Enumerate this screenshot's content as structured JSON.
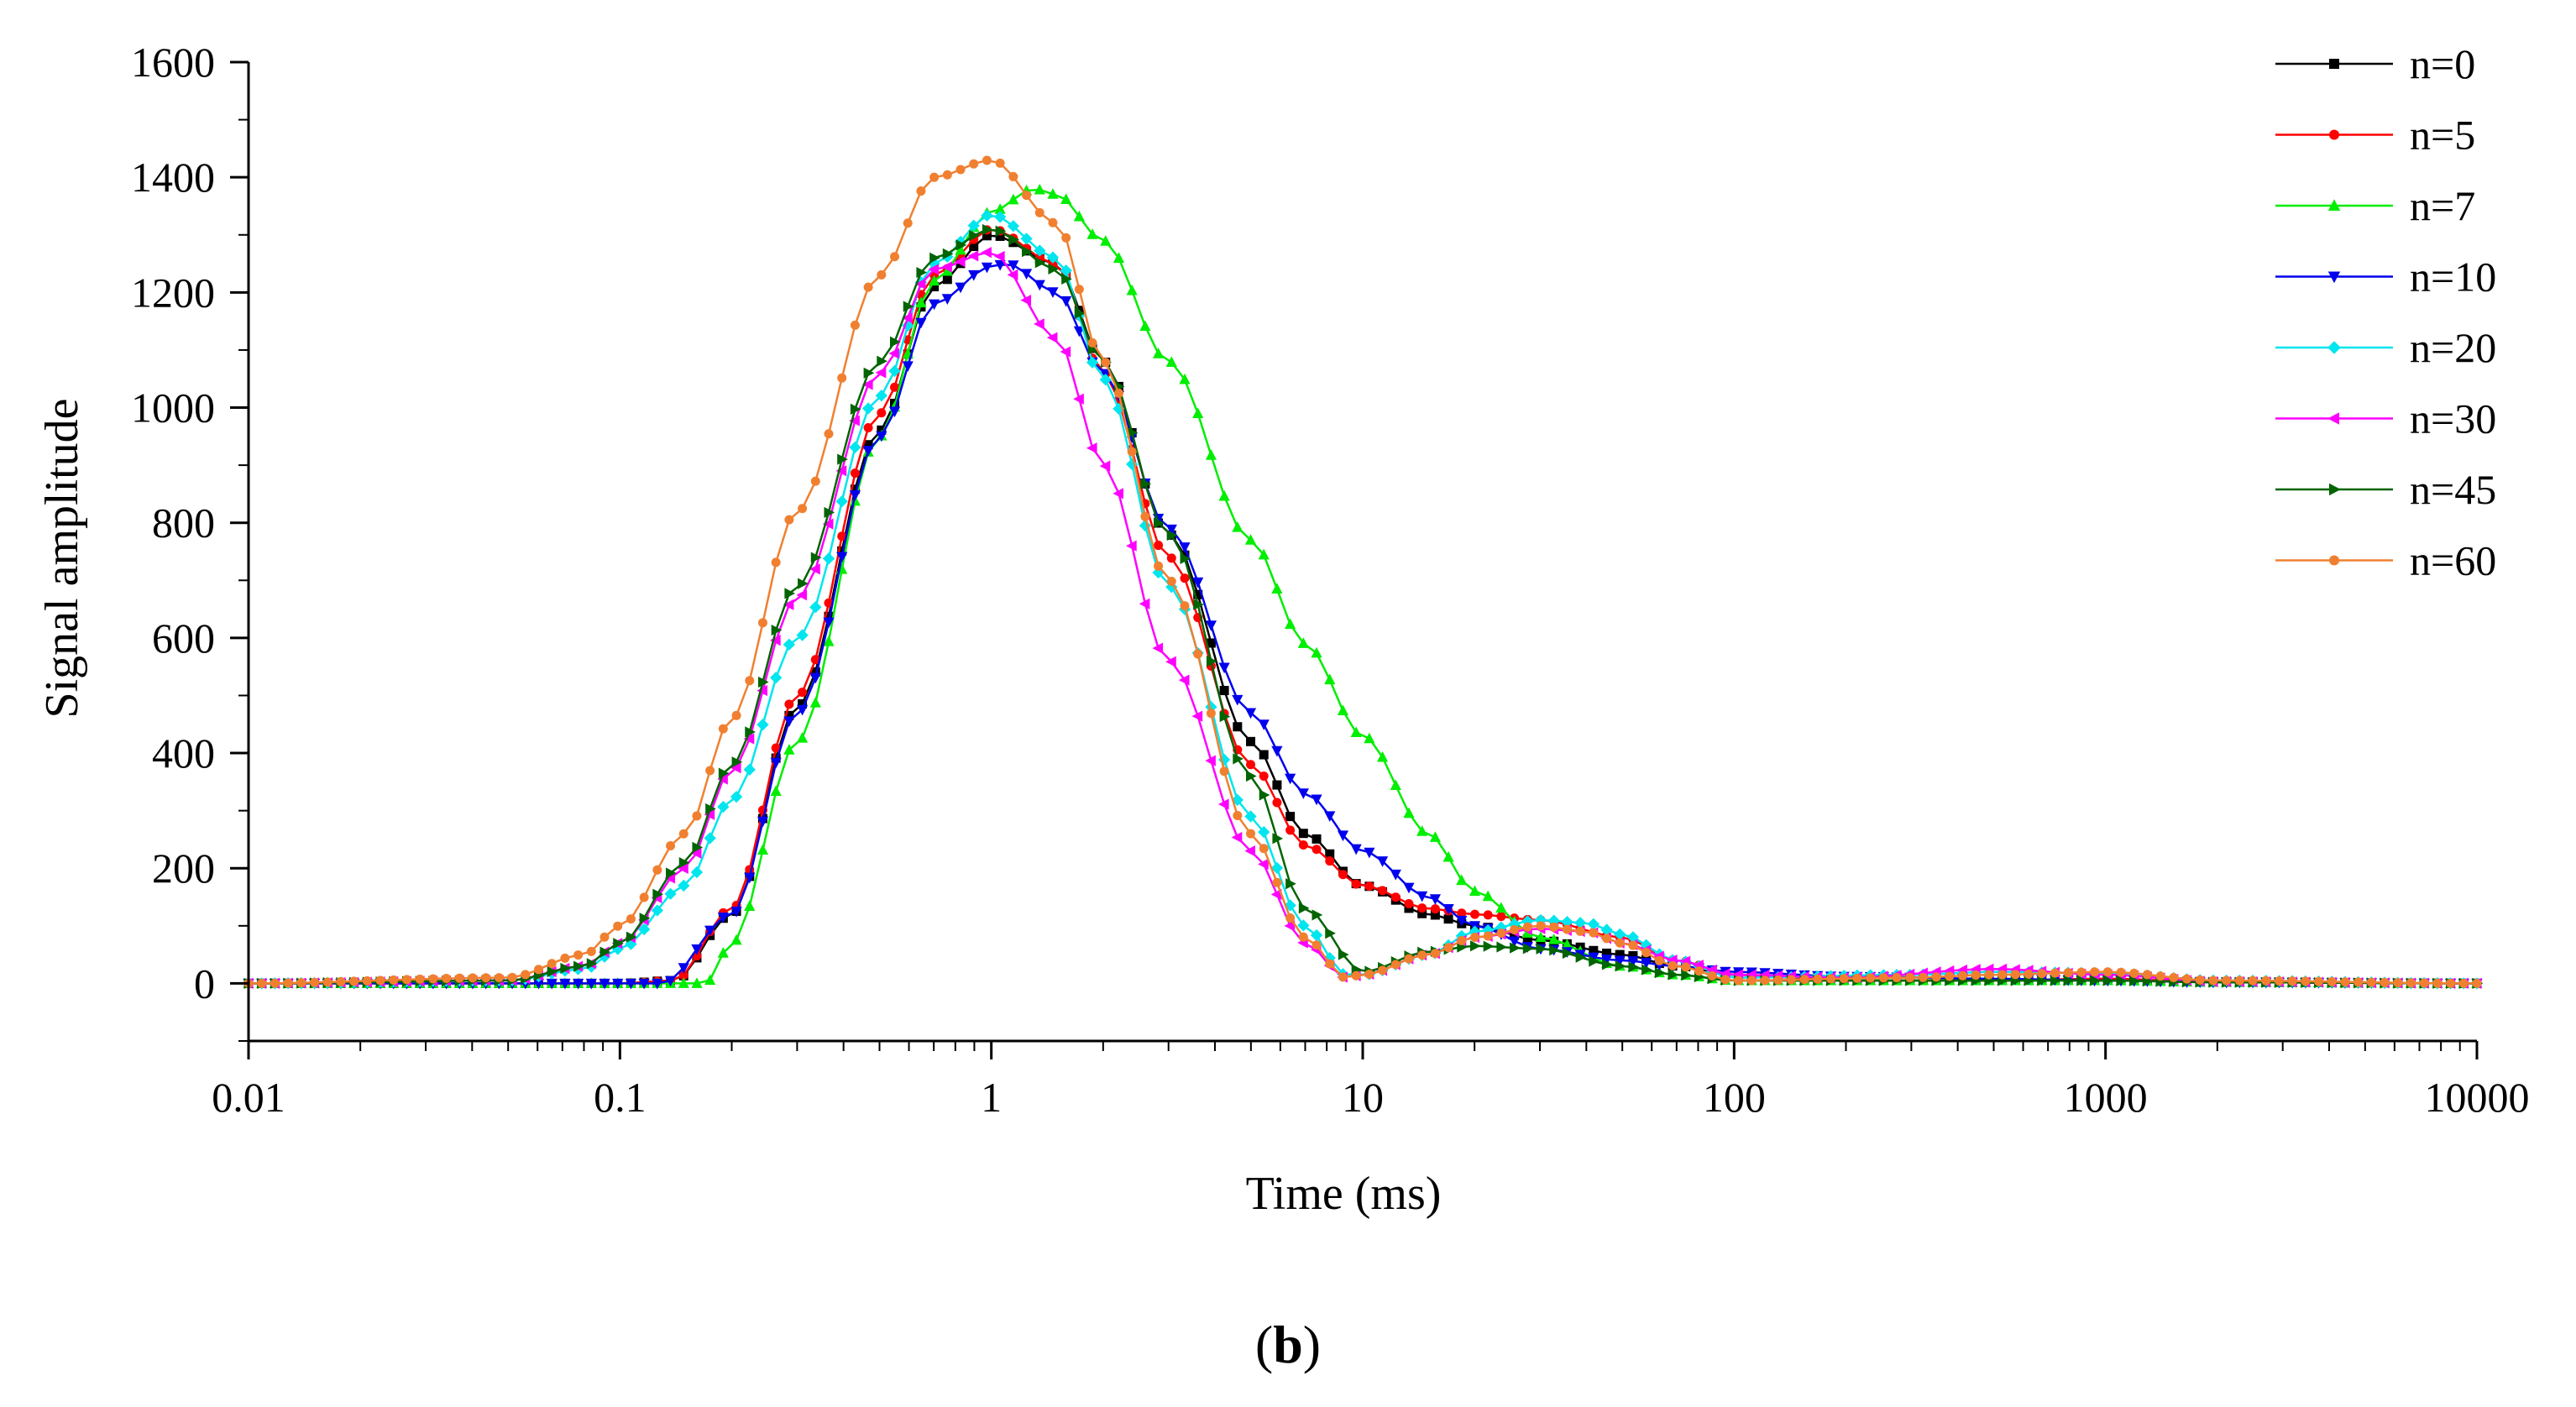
{
  "chart_data": {
    "type": "line",
    "x_scale": "log",
    "xlim": [
      0.01,
      10000
    ],
    "ylim": [
      -100,
      1600
    ],
    "xlabel": "Time (ms)",
    "ylabel": "Signal amplitude",
    "x_ticks": [
      0.01,
      0.1,
      1,
      10,
      100,
      1000,
      10000
    ],
    "x_tick_labels": [
      "0.01",
      "0.1",
      "1",
      "10",
      "100",
      "1000",
      "10000"
    ],
    "y_ticks": [
      0,
      200,
      400,
      600,
      800,
      1000,
      1200,
      1400,
      1600
    ],
    "y_tick_labels": [
      "0",
      "200",
      "400",
      "600",
      "800",
      "1000",
      "1200",
      "1400",
      "1600"
    ],
    "legend_position": "top-right",
    "series": [
      {
        "name": "n=0",
        "color": "#000000",
        "marker": "square",
        "x": [
          0.01,
          0.1,
          0.14,
          0.2,
          0.3,
          0.5,
          0.7,
          1,
          1.5,
          2,
          3,
          5,
          7,
          10,
          15,
          20,
          30,
          50,
          70,
          100,
          200,
          500,
          1000,
          2000,
          10000
        ],
        "y": [
          0,
          0,
          5,
          120,
          480,
          960,
          1210,
          1300,
          1250,
          1080,
          780,
          420,
          260,
          170,
          120,
          100,
          75,
          50,
          30,
          15,
          5,
          5,
          8,
          2,
          0
        ]
      },
      {
        "name": "n=5",
        "color": "#ff0000",
        "marker": "circle",
        "x": [
          0.01,
          0.1,
          0.14,
          0.2,
          0.3,
          0.5,
          0.7,
          1,
          1.5,
          2,
          3,
          5,
          7,
          10,
          15,
          20,
          30,
          50,
          70,
          100,
          200,
          500,
          1000,
          2000,
          10000
        ],
        "y": [
          0,
          0,
          5,
          130,
          500,
          990,
          1230,
          1310,
          1250,
          1060,
          740,
          380,
          240,
          170,
          130,
          120,
          110,
          80,
          40,
          15,
          5,
          5,
          8,
          2,
          0
        ]
      },
      {
        "name": "n=7",
        "color": "#00ee00",
        "marker": "triangle-up",
        "x": [
          0.01,
          0.17,
          0.2,
          0.3,
          0.5,
          0.7,
          1,
          1.3,
          1.5,
          2,
          3,
          5,
          7,
          10,
          15,
          20,
          30,
          50,
          70,
          100,
          1000,
          2000,
          10000
        ],
        "y": [
          0,
          0,
          70,
          420,
          950,
          1220,
          1340,
          1380,
          1370,
          1290,
          1080,
          770,
          590,
          430,
          260,
          160,
          80,
          30,
          15,
          5,
          5,
          2,
          0
        ]
      },
      {
        "name": "n=10",
        "color": "#0000ee",
        "marker": "triangle-down",
        "x": [
          0.01,
          0.13,
          0.2,
          0.3,
          0.5,
          0.7,
          1,
          1.1,
          1.5,
          2,
          3,
          5,
          7,
          10,
          15,
          20,
          30,
          50,
          70,
          100,
          200,
          500,
          1000,
          2000,
          10000
        ],
        "y": [
          0,
          0,
          120,
          470,
          950,
          1180,
          1245,
          1250,
          1200,
          1060,
          790,
          470,
          330,
          230,
          150,
          100,
          60,
          40,
          30,
          20,
          12,
          8,
          5,
          2,
          0
        ]
      },
      {
        "name": "n=20",
        "color": "#00e5ee",
        "marker": "diamond",
        "x": [
          0.01,
          0.05,
          0.08,
          0.1,
          0.15,
          0.2,
          0.3,
          0.5,
          0.7,
          1,
          1.5,
          2,
          3,
          5,
          7,
          9,
          10,
          15,
          20,
          30,
          40,
          50,
          70,
          100,
          300,
          500,
          1000,
          2000,
          10000
        ],
        "y": [
          0,
          5,
          25,
          60,
          170,
          320,
          600,
          1020,
          1250,
          1335,
          1260,
          1050,
          690,
          290,
          100,
          15,
          15,
          50,
          90,
          110,
          105,
          85,
          40,
          10,
          15,
          20,
          18,
          5,
          0
        ]
      },
      {
        "name": "n=30",
        "color": "#ff00ff",
        "marker": "triangle-left",
        "x": [
          0.01,
          0.05,
          0.08,
          0.1,
          0.15,
          0.2,
          0.3,
          0.5,
          0.7,
          1,
          1.5,
          2,
          3,
          5,
          7,
          9,
          10,
          15,
          20,
          30,
          40,
          50,
          70,
          100,
          200,
          500,
          1000,
          2000,
          10000
        ],
        "y": [
          0,
          5,
          30,
          70,
          200,
          370,
          670,
          1060,
          1240,
          1270,
          1120,
          900,
          560,
          230,
          70,
          10,
          15,
          50,
          80,
          95,
          90,
          70,
          40,
          15,
          10,
          25,
          15,
          3,
          0
        ]
      },
      {
        "name": "n=45",
        "color": "#006400",
        "marker": "triangle-right",
        "x": [
          0.01,
          0.05,
          0.08,
          0.1,
          0.15,
          0.2,
          0.3,
          0.5,
          0.7,
          1,
          1.5,
          2,
          3,
          5,
          7,
          10,
          15,
          20,
          30,
          50,
          70,
          100,
          1000,
          2000,
          10000
        ],
        "y": [
          0,
          5,
          30,
          70,
          210,
          380,
          690,
          1080,
          1260,
          1310,
          1240,
          1080,
          780,
          360,
          130,
          20,
          55,
          65,
          60,
          30,
          15,
          5,
          5,
          2,
          0
        ]
      },
      {
        "name": "n=60",
        "color": "#f08030",
        "marker": "circle",
        "x": [
          0.01,
          0.05,
          0.08,
          0.1,
          0.15,
          0.2,
          0.3,
          0.5,
          0.7,
          1,
          1.5,
          2,
          3,
          5,
          7,
          9,
          10,
          15,
          20,
          30,
          40,
          50,
          70,
          100,
          300,
          500,
          1000,
          2000,
          10000
        ],
        "y": [
          0,
          10,
          50,
          100,
          260,
          460,
          820,
          1230,
          1400,
          1430,
          1320,
          1080,
          700,
          260,
          80,
          10,
          15,
          50,
          80,
          100,
          90,
          70,
          30,
          5,
          10,
          15,
          20,
          5,
          0
        ]
      }
    ]
  },
  "caption": {
    "open": "(",
    "letter": "b",
    "close": ")"
  }
}
